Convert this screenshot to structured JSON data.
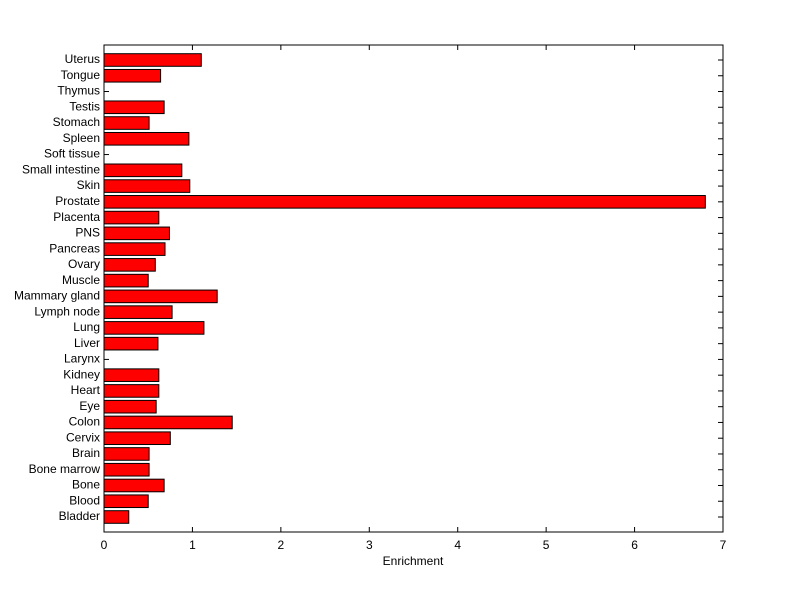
{
  "chart_data": {
    "type": "barh",
    "categories": [
      "Bladder",
      "Blood",
      "Bone",
      "Bone marrow",
      "Brain",
      "Cervix",
      "Colon",
      "Eye",
      "Heart",
      "Kidney",
      "Larynx",
      "Liver",
      "Lung",
      "Lymph node",
      "Mammary gland",
      "Muscle",
      "Ovary",
      "Pancreas",
      "PNS",
      "Placenta",
      "Prostate",
      "Skin",
      "Small intestine",
      "Soft tissue",
      "Spleen",
      "Stomach",
      "Testis",
      "Thymus",
      "Tongue",
      "Uterus"
    ],
    "values": [
      0.28,
      0.5,
      0.68,
      0.51,
      0.51,
      0.75,
      1.45,
      0.59,
      0.62,
      0.62,
      0,
      0.61,
      1.13,
      0.77,
      1.28,
      0.5,
      0.58,
      0.69,
      0.74,
      0.62,
      6.8,
      0.97,
      0.88,
      0,
      0.96,
      0.51,
      0.68,
      0,
      0.64,
      1.1
    ],
    "color": "#ff0000",
    "xlabel": "Enrichment",
    "xlim": [
      0,
      7
    ],
    "xticks": [
      0,
      1,
      2,
      3,
      4,
      5,
      6,
      7
    ]
  }
}
